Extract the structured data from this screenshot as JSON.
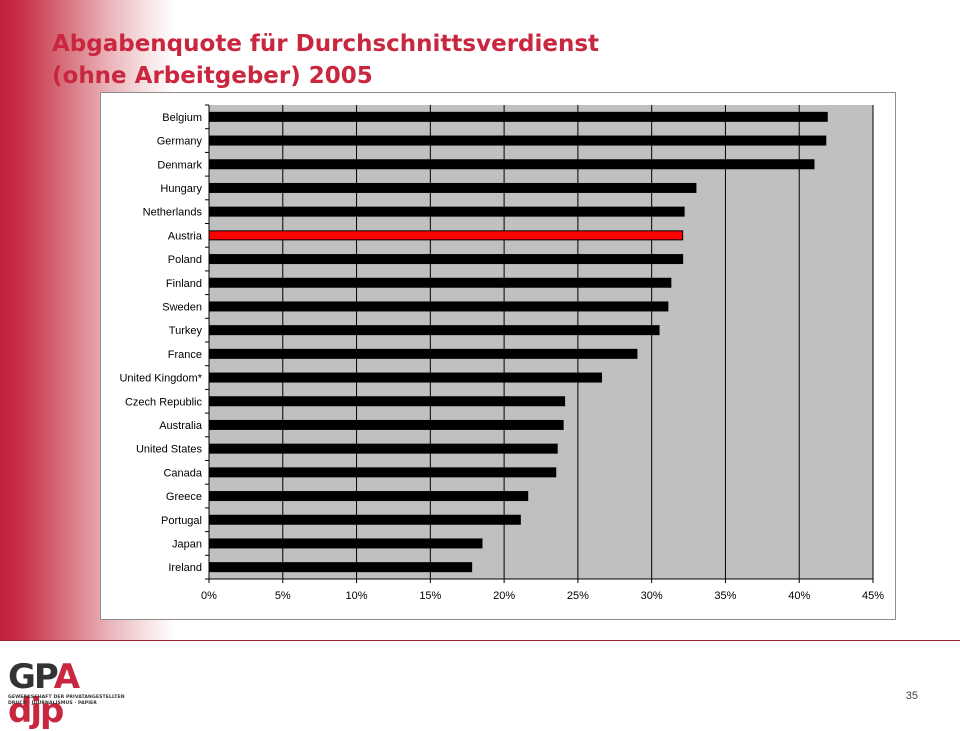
{
  "slide": {
    "title_line1": "Abgabenquote für Durchschnittsverdienst",
    "title_line2": "(ohne Arbeitgeber) 2005",
    "page_number": "35"
  },
  "logo": {
    "main_text_1": "GP",
    "main_text_2": "A",
    "main_text_3": " djp",
    "sub_line1": "GEWERKSCHAFT DER PRIVATANGESTELLTEN",
    "sub_line2": "DRUCK · JOURNALISMUS · PAPIER"
  },
  "colors": {
    "title": "#c8273f",
    "plot_background": "#c0c0c0",
    "bar": "#000000",
    "highlight_bar": "#ff0000"
  },
  "chart_data": {
    "type": "bar",
    "orientation": "horizontal",
    "title": "",
    "xlabel": "",
    "ylabel": "",
    "xlim": [
      0,
      45
    ],
    "x_ticks": [
      "0%",
      "5%",
      "10%",
      "15%",
      "20%",
      "25%",
      "30%",
      "35%",
      "40%",
      "45%"
    ],
    "grid": "vertical",
    "legend": "none",
    "highlight": "Austria",
    "categories": [
      "Belgium",
      "Germany",
      "Denmark",
      "Hungary",
      "Netherlands",
      "Austria",
      "Poland",
      "Finland",
      "Sweden",
      "Turkey",
      "France",
      "United Kingdom*",
      "Czech Republic",
      "Australia",
      "United States",
      "Canada",
      "Greece",
      "Portugal",
      "Japan",
      "Ireland"
    ],
    "values": [
      41.9,
      41.8,
      41.0,
      33.0,
      32.2,
      32.1,
      32.1,
      31.3,
      31.1,
      30.5,
      29.0,
      26.6,
      24.1,
      24.0,
      23.6,
      23.5,
      21.6,
      21.1,
      18.5,
      17.8
    ]
  }
}
